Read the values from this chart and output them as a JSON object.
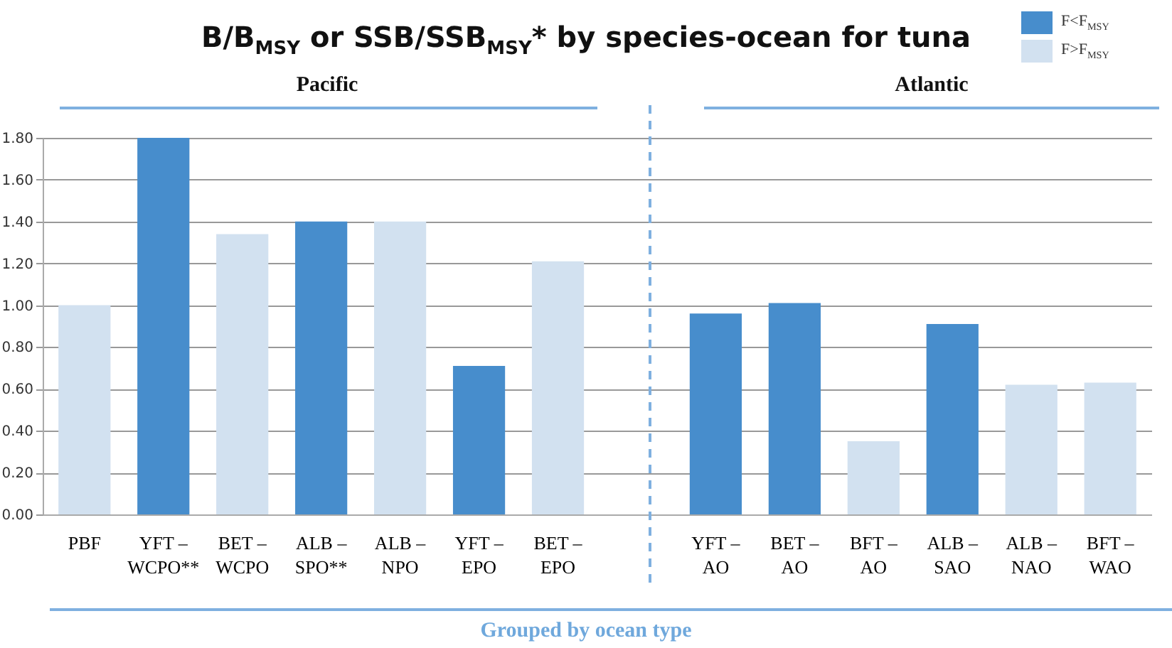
{
  "chart_data": {
    "type": "bar",
    "title": "B/B$_{MSY}$ or SSB/SSB$_{MSY}$* by species-ocean for tuna",
    "categories": [
      "PBF",
      "YFT –\nWCPO**",
      "BET –\nWCPO",
      "ALB –\nSPO**",
      "ALB –\nNPO",
      "YFT –\nEPO",
      "BET –\nEPO",
      null,
      "YFT –\nAO",
      "BET –\nAO",
      "BFT –\nAO",
      "ALB –\nSAO",
      "ALB –\nNAO",
      "BFT –\nWAO"
    ],
    "series": [
      {
        "name": "F<F$_{MSY}$",
        "color": "#478dcc",
        "values": [
          null,
          1.8,
          null,
          1.4,
          null,
          0.71,
          null,
          null,
          0.96,
          1.01,
          null,
          0.91,
          null,
          null
        ]
      },
      {
        "name": "F>F$_{MSY}$",
        "color": "#d2e1f0",
        "values": [
          1.0,
          null,
          1.34,
          null,
          1.4,
          null,
          1.21,
          null,
          null,
          null,
          0.35,
          null,
          0.62,
          0.63
        ]
      }
    ],
    "ylim": [
      0,
      1.8
    ],
    "yticks": [
      {
        "value": 0,
        "label": "0.00"
      },
      {
        "value": 0.2,
        "label": "0.20"
      },
      {
        "value": 0.4,
        "label": "0.40"
      },
      {
        "value": 0.6,
        "label": "0.60"
      },
      {
        "value": 0.8,
        "label": "0.80"
      },
      {
        "value": 1,
        "label": "1.00"
      },
      {
        "value": 1.2,
        "label": "1.20"
      },
      {
        "value": 1.4,
        "label": "1.40"
      },
      {
        "value": 1.6,
        "label": "1.60"
      },
      {
        "value": 1.8,
        "label": "1.80"
      }
    ],
    "grid": "y",
    "legend": "top right",
    "annotations": [
      "Pacific",
      "Atlantic",
      "Grouped by ocean type"
    ]
  }
}
